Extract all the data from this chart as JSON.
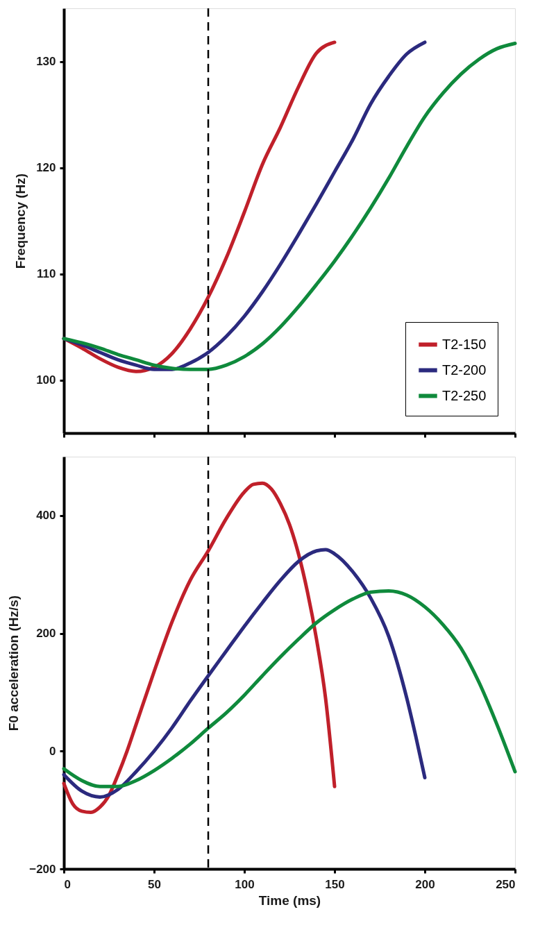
{
  "chart_data": [
    {
      "type": "line",
      "ylabel": "Frequency (Hz)",
      "xlim": [
        0,
        250
      ],
      "xticks": [
        0,
        50,
        100,
        150,
        200,
        250
      ],
      "ylim": [
        95,
        135
      ],
      "yticks": [
        100,
        110,
        120,
        130
      ],
      "tick_labels": "y",
      "grid": false,
      "legend": "bottom right",
      "line_style": "solid",
      "marker": "none",
      "ref_lines": [
        {
          "axis": "x",
          "value": 80,
          "color": "#000000",
          "line_style": "dashed"
        }
      ],
      "series": [
        {
          "name": "T2-150",
          "color": "#c0202a",
          "x": [
            0,
            10,
            20,
            30,
            40,
            50,
            60,
            70,
            80,
            90,
            100,
            110,
            120,
            130,
            140,
            150
          ],
          "values": [
            103.9,
            103.0,
            102.0,
            101.2,
            100.8,
            101.2,
            102.5,
            104.8,
            107.8,
            111.5,
            115.8,
            120.3,
            123.8,
            127.6,
            130.8,
            131.8
          ]
        },
        {
          "name": "T2-200",
          "color": "#2b2a7e",
          "x": [
            0,
            10,
            20,
            30,
            40,
            50,
            60,
            70,
            80,
            90,
            100,
            110,
            120,
            130,
            140,
            150,
            160,
            170,
            180,
            190,
            200
          ],
          "values": [
            103.9,
            103.3,
            102.6,
            101.9,
            101.4,
            101.0,
            101.0,
            101.6,
            102.6,
            104.1,
            106.0,
            108.3,
            110.9,
            113.7,
            116.6,
            119.6,
            122.6,
            126.0,
            128.6,
            130.7,
            131.8
          ]
        },
        {
          "name": "T2-250",
          "color": "#0f8a3c",
          "x": [
            0,
            10,
            20,
            30,
            40,
            50,
            60,
            70,
            80,
            90,
            100,
            110,
            120,
            130,
            140,
            150,
            160,
            170,
            180,
            190,
            200,
            210,
            220,
            230,
            240,
            250
          ],
          "values": [
            103.9,
            103.5,
            103.0,
            102.4,
            101.9,
            101.4,
            101.1,
            101.0,
            101.0,
            101.4,
            102.2,
            103.4,
            105.0,
            106.9,
            109.0,
            111.2,
            113.6,
            116.2,
            119.0,
            122.0,
            124.8,
            127.0,
            128.8,
            130.2,
            131.2,
            131.7
          ]
        }
      ]
    },
    {
      "type": "line",
      "xlabel": "Time (ms)",
      "ylabel": "F0 acceleration (Hz/s)",
      "xlim": [
        0,
        250
      ],
      "xticks": [
        0,
        50,
        100,
        150,
        200,
        250
      ],
      "ylim": [
        -200,
        500
      ],
      "yticks": [
        -200,
        0,
        200,
        400
      ],
      "grid": false,
      "line_style": "solid",
      "marker": "none",
      "ref_lines": [
        {
          "axis": "x",
          "value": 80,
          "color": "#000000",
          "line_style": "dashed"
        }
      ],
      "series": [
        {
          "color": "#c0202a",
          "x": [
            0,
            5,
            10,
            15,
            20,
            25,
            30,
            35,
            40,
            50,
            60,
            70,
            80,
            90,
            100,
            105,
            110,
            115,
            120,
            125,
            130,
            135,
            140,
            145,
            150
          ],
          "values": [
            -55,
            -90,
            -102,
            -104,
            -95,
            -75,
            -40,
            0,
            45,
            135,
            220,
            290,
            340,
            395,
            440,
            453,
            455,
            445,
            420,
            385,
            335,
            270,
            190,
            90,
            -60
          ]
        },
        {
          "color": "#2b2a7e",
          "x": [
            0,
            10,
            20,
            30,
            40,
            50,
            60,
            70,
            80,
            90,
            100,
            110,
            120,
            130,
            140,
            145,
            150,
            160,
            170,
            180,
            190,
            195,
            200
          ],
          "values": [
            -40,
            -68,
            -78,
            -65,
            -35,
            0,
            40,
            85,
            128,
            170,
            212,
            252,
            290,
            322,
            340,
            342,
            335,
            305,
            260,
            195,
            90,
            25,
            -45
          ]
        },
        {
          "color": "#0f8a3c",
          "x": [
            0,
            10,
            20,
            30,
            40,
            50,
            60,
            70,
            80,
            90,
            100,
            110,
            120,
            130,
            140,
            150,
            160,
            170,
            180,
            190,
            200,
            210,
            220,
            230,
            240,
            250
          ],
          "values": [
            -30,
            -50,
            -60,
            -60,
            -50,
            -33,
            -12,
            12,
            39,
            65,
            95,
            128,
            160,
            190,
            218,
            240,
            258,
            270,
            272,
            265,
            245,
            215,
            175,
            117,
            45,
            -35
          ]
        }
      ]
    }
  ]
}
